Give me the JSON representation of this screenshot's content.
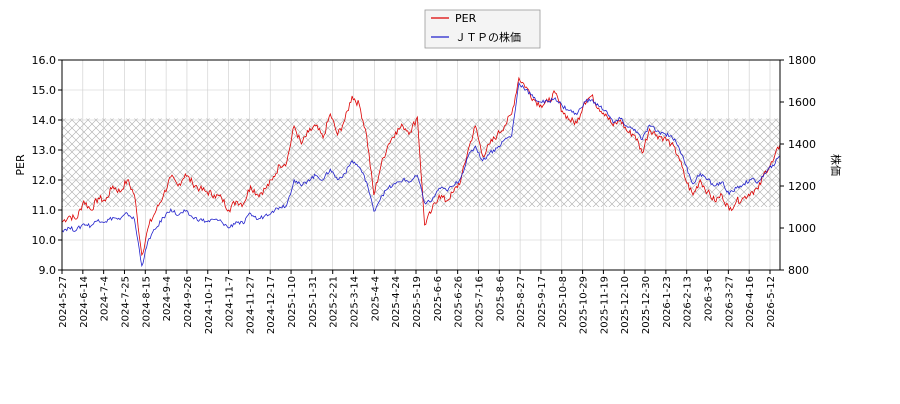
{
  "chart_data": {
    "type": "line",
    "title": "",
    "legend": {
      "placement": "top-center",
      "entries": [
        {
          "label": "PER",
          "color": "#dd0000"
        },
        {
          "label": "ＪＴＰの株価",
          "color": "#2222cc"
        }
      ]
    },
    "y_left": {
      "label": "PER",
      "range": [
        9.0,
        16.0
      ],
      "ticks": [
        "9.0",
        "10.0",
        "11.0",
        "12.0",
        "13.0",
        "14.0",
        "15.0",
        "16.0"
      ]
    },
    "y_right": {
      "label": "株価",
      "range": [
        800,
        1800
      ],
      "ticks": [
        "800",
        "1000",
        "1200",
        "1400",
        "1600",
        "1800"
      ]
    },
    "x_ticks": [
      "2024-5-27",
      "2024-6-14",
      "2024-7-4",
      "2024-7-25",
      "2024-8-15",
      "2024-9-4",
      "2024-9-26",
      "2024-10-17",
      "2024-11-7",
      "2024-11-27",
      "2024-12-17",
      "2025-1-10",
      "2025-1-31",
      "2025-2-21",
      "2025-3-14",
      "2025-4-4",
      "2025-4-24",
      "2025-5-19",
      "2025-6-6",
      "2025-6-26",
      "2025-7-16",
      "2025-8-6",
      "2025-8-27",
      "2025-9-17",
      "2025-10-8",
      "2025-10-29",
      "2025-11-19",
      "2025-12-10",
      "2025-12-30",
      "2026-1-23",
      "2026-2-13",
      "2026-3-6",
      "2026-3-27",
      "2026-4-16",
      "2026-5-12"
    ],
    "grid": true,
    "shaded_band": {
      "axis": "left",
      "from": 11.1,
      "to": 14.05,
      "pattern": "crosshatch"
    },
    "series": [
      {
        "name": "PER",
        "axis": "left",
        "color": "#dd0000",
        "values": [
          10.6,
          10.8,
          10.7,
          11.3,
          11.0,
          11.4,
          11.3,
          11.8,
          11.6,
          12.0,
          11.5,
          9.5,
          10.5,
          11.0,
          11.5,
          12.1,
          11.8,
          12.2,
          11.9,
          11.7,
          11.6,
          11.5,
          11.4,
          11.0,
          11.3,
          11.2,
          11.8,
          11.5,
          11.7,
          12.0,
          12.5,
          12.6,
          13.8,
          13.2,
          13.6,
          13.8,
          13.4,
          14.2,
          13.5,
          14.0,
          14.8,
          14.5,
          13.5,
          11.5,
          12.5,
          13.2,
          13.6,
          13.8,
          13.6,
          14.1,
          10.5,
          11.0,
          11.5,
          11.3,
          11.6,
          12.0,
          13.0,
          13.8,
          12.8,
          13.2,
          13.5,
          13.8,
          14.2,
          15.4,
          15.1,
          14.7,
          14.5,
          14.6,
          14.9,
          14.3,
          14.0,
          13.9,
          14.6,
          14.8,
          14.4,
          14.2,
          13.8,
          14.0,
          13.6,
          13.5,
          12.9,
          13.7,
          13.5,
          13.4,
          13.2,
          12.8,
          12.0,
          11.5,
          12.0,
          11.6,
          11.3,
          11.5,
          11.0,
          11.3,
          11.4,
          11.6,
          11.7,
          12.3,
          12.6,
          13.2
        ]
      },
      {
        "name": "ＪＴＰの株価",
        "axis": "right",
        "color": "#2222cc",
        "values": [
          990,
          1000,
          990,
          1020,
          1010,
          1040,
          1030,
          1050,
          1040,
          1070,
          1040,
          820,
          950,
          1000,
          1050,
          1090,
          1060,
          1080,
          1050,
          1040,
          1030,
          1040,
          1030,
          1000,
          1030,
          1020,
          1070,
          1040,
          1060,
          1080,
          1100,
          1110,
          1230,
          1200,
          1230,
          1250,
          1230,
          1280,
          1230,
          1260,
          1320,
          1290,
          1220,
          1080,
          1150,
          1190,
          1210,
          1230,
          1220,
          1250,
          1120,
          1130,
          1190,
          1180,
          1200,
          1240,
          1340,
          1390,
          1320,
          1360,
          1380,
          1420,
          1440,
          1690,
          1660,
          1620,
          1600,
          1600,
          1620,
          1580,
          1560,
          1540,
          1600,
          1610,
          1580,
          1560,
          1500,
          1520,
          1480,
          1470,
          1420,
          1490,
          1460,
          1450,
          1440,
          1390,
          1300,
          1210,
          1260,
          1230,
          1200,
          1220,
          1160,
          1190,
          1210,
          1230,
          1220,
          1260,
          1300,
          1340
        ]
      }
    ]
  }
}
